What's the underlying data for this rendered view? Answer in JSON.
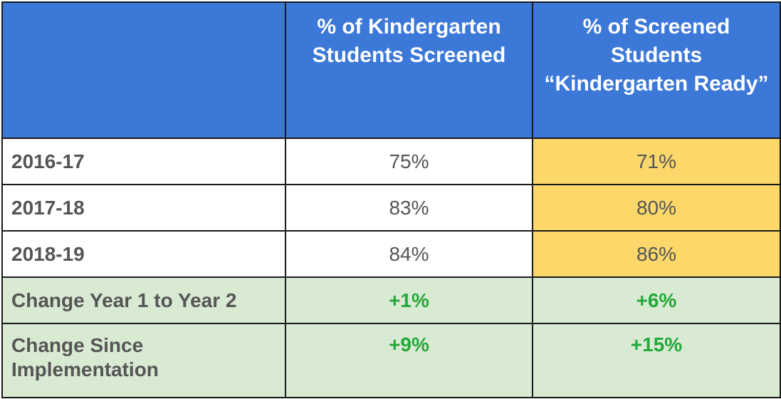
{
  "header": {
    "corner": "",
    "col_a": "% of Kindergarten Students Screened",
    "col_b": "% of Screened Students “Kindergarten Ready”"
  },
  "rows": [
    {
      "label": "2016-17",
      "screened": "75%",
      "ready": "71%"
    },
    {
      "label": "2017-18",
      "screened": "83%",
      "ready": "80%"
    },
    {
      "label": "2018-19",
      "screened": "84%",
      "ready": "86%"
    }
  ],
  "changes": [
    {
      "label": "Change Year 1 to Year 2",
      "screened": "+1%",
      "ready": "+6%"
    },
    {
      "label": "Change Since Implementation",
      "screened": "+9%",
      "ready": "+15%"
    }
  ],
  "colors": {
    "header_bg": "#3b78d8",
    "highlight_bg": "#fcd86b",
    "change_bg": "#d9ead3",
    "positive_text": "#22a839"
  }
}
